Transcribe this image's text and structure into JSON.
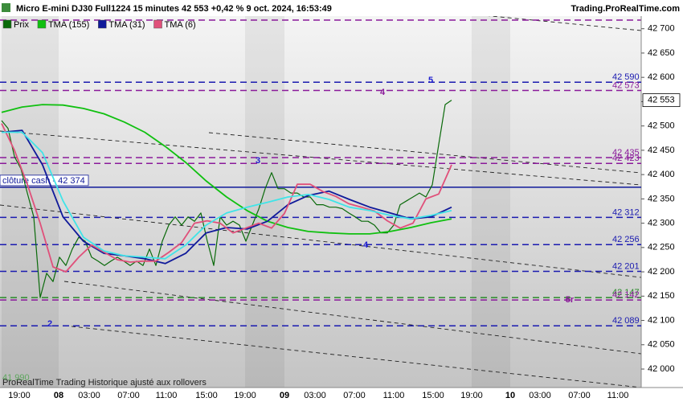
{
  "chart_data": {
    "type": "line",
    "title": "Micro E-mini DJ30 Full1224 15 minutes 42 553 +0,42 % 9 oct. 2024, 16:53:49",
    "source": "Trading.ProRealTime.com",
    "footer": "ProRealTime Trading  Historique ajusté aux rollovers",
    "corner_value": "41 990",
    "xticks": [
      "19:00",
      "08",
      "03:00",
      "07:00",
      "11:00",
      "15:00",
      "19:00",
      "09",
      "03:00",
      "07:00",
      "11:00",
      "15:00",
      "19:00",
      "10",
      "03:00",
      "07:00",
      "11:00"
    ],
    "ylim": [
      41962,
      42726
    ],
    "yticks": [
      {
        "value": 42700,
        "label": "42 700"
      },
      {
        "value": 42650,
        "label": "42 650"
      },
      {
        "value": 42600,
        "label": "42 600"
      },
      {
        "value": 42550,
        "label": "42 550"
      },
      {
        "value": 42500,
        "label": "42 500"
      },
      {
        "value": 42450,
        "label": "42 450"
      },
      {
        "value": 42400,
        "label": "42 400"
      },
      {
        "value": 42350,
        "label": "42 350"
      },
      {
        "value": 42300,
        "label": "42 300"
      },
      {
        "value": 42250,
        "label": "42 250"
      },
      {
        "value": 42200,
        "label": "42 200"
      },
      {
        "value": 42150,
        "label": "42 150"
      },
      {
        "value": 42100,
        "label": "42 100"
      },
      {
        "value": 42050,
        "label": "42 050"
      },
      {
        "value": 42000,
        "label": "42 000"
      }
    ],
    "series": [
      {
        "name": "Prix",
        "color": "#0a6a0a",
        "values": [
          42511,
          42495,
          42437,
          42412,
          42362,
          42313,
          42147,
          42197,
          42180,
          42230,
          42213,
          42247,
          42271,
          42263,
          42230,
          42222,
          42213,
          42222,
          42230,
          42222,
          42213,
          42222,
          42213,
          42247,
          42213,
          42263,
          42296,
          42313,
          42296,
          42313,
          42304,
          42321,
          42263,
          42213,
          42313,
          42296,
          42304,
          42296,
          42263,
          42296,
          42329,
          42371,
          42404,
          42371,
          42371,
          42362,
          42362,
          42354,
          42354,
          42338,
          42338,
          42333,
          42333,
          42330,
          42321,
          42313,
          42304,
          42304,
          42296,
          42280,
          42280,
          42296,
          42338,
          42346,
          42354,
          42362,
          42354,
          42379,
          42462,
          42544,
          42553
        ]
      },
      {
        "name": "TMA (155)",
        "color": "#10c010",
        "values": [
          42528,
          42539,
          42544,
          42543,
          42536,
          42525,
          42508,
          42487,
          42458,
          42425,
          42387,
          42354,
          42326,
          42304,
          42291,
          42283,
          42280,
          42278,
          42278,
          42283,
          42291,
          42301,
          42309
        ]
      },
      {
        "name": "TMA (31)",
        "color": "#101a9a",
        "values": [
          42487,
          42491,
          42420,
          42313,
          42263,
          42238,
          42233,
          42227,
          42217,
          42238,
          42280,
          42291,
          42288,
          42304,
          42338,
          42357,
          42366,
          42349,
          42333,
          42321,
          42309,
          42313,
          42333
        ]
      },
      {
        "name": "TMA (6)",
        "color": "#e0507a",
        "values": [
          42505,
          42450,
          42380,
          42300,
          42210,
          42200,
          42230,
          42255,
          42240,
          42225,
          42220,
          42222,
          42222,
          42240,
          42260,
          42300,
          42305,
          42300,
          42280,
          42290,
          42300,
          42290,
          42320,
          42380,
          42380,
          42365,
          42355,
          42340,
          42333,
          42325,
          42305,
          42290,
          42300,
          42350,
          42360,
          42420
        ]
      },
      {
        "color": "#40e4e8",
        "values": [
          42487,
          42487,
          42445,
          42346,
          42271,
          42243,
          42233,
          42230,
          42227,
          42255,
          42296,
          42321,
          42333,
          42343,
          42354,
          42359,
          42349,
          42333,
          42326,
          42316,
          42309,
          42316,
          42326
        ]
      }
    ],
    "levels": [
      {
        "value": 42590,
        "label": "42 590",
        "color": "#1a1ab0"
      },
      {
        "value": 42573,
        "label": "42 573",
        "color": "#8a1a9a"
      },
      {
        "value": 42435,
        "label": "42 435",
        "color": "#8a1a9a"
      },
      {
        "value": 42423,
        "label": "42 423",
        "color": "#8a1a9a"
      },
      {
        "value": 42312,
        "label": "42 312",
        "color": "#1a1ab0"
      },
      {
        "value": 42256,
        "label": "42 256",
        "color": "#1a1ab0"
      },
      {
        "value": 42201,
        "label": "42 201",
        "color": "#1a1ab0"
      },
      {
        "value": 42147,
        "label": "42 147",
        "color": "#2a8a2a"
      },
      {
        "value": 42142,
        "label": "42 142",
        "color": "#8a1a9a"
      },
      {
        "value": 42089,
        "label": "42 089",
        "color": "#1a1ab0"
      }
    ],
    "close_cash": {
      "value": 42374,
      "label": "clôture cash - 42 374",
      "color": "#101a9a"
    },
    "last_price": {
      "value": 42553,
      "label": "42 553"
    },
    "annotations": [
      {
        "text": "5",
        "color": "#1f1fd0"
      },
      {
        "text": "4",
        "color": "#8a1a9a"
      },
      {
        "text": "3",
        "color": "#1f1fd0"
      },
      {
        "text": "4",
        "color": "#1f1fd0"
      },
      {
        "text": "2",
        "color": "#1f1fd0"
      },
      {
        "text": "5r",
        "color": "#8a1a9a"
      }
    ]
  }
}
